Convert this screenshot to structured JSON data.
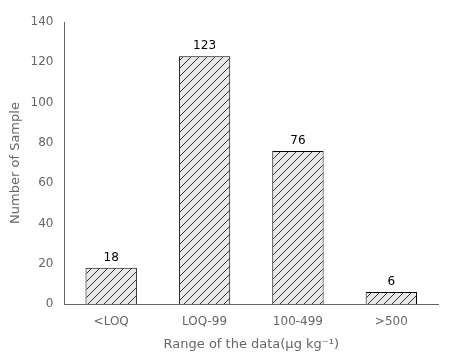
{
  "chart_data": {
    "type": "bar",
    "categories": [
      "<LOQ",
      "LOQ-99",
      "100-499",
      ">500"
    ],
    "values": [
      18,
      123,
      76,
      6
    ],
    "color": "#e8e8e8",
    "xlabel": "Range of the data(μg kg⁻¹)",
    "ylabel": "Number of Sample",
    "ylim": [
      0,
      140
    ],
    "yticks": [
      0,
      20,
      40,
      60,
      80,
      100,
      120,
      140
    ],
    "grid": false,
    "data_labels": true
  }
}
